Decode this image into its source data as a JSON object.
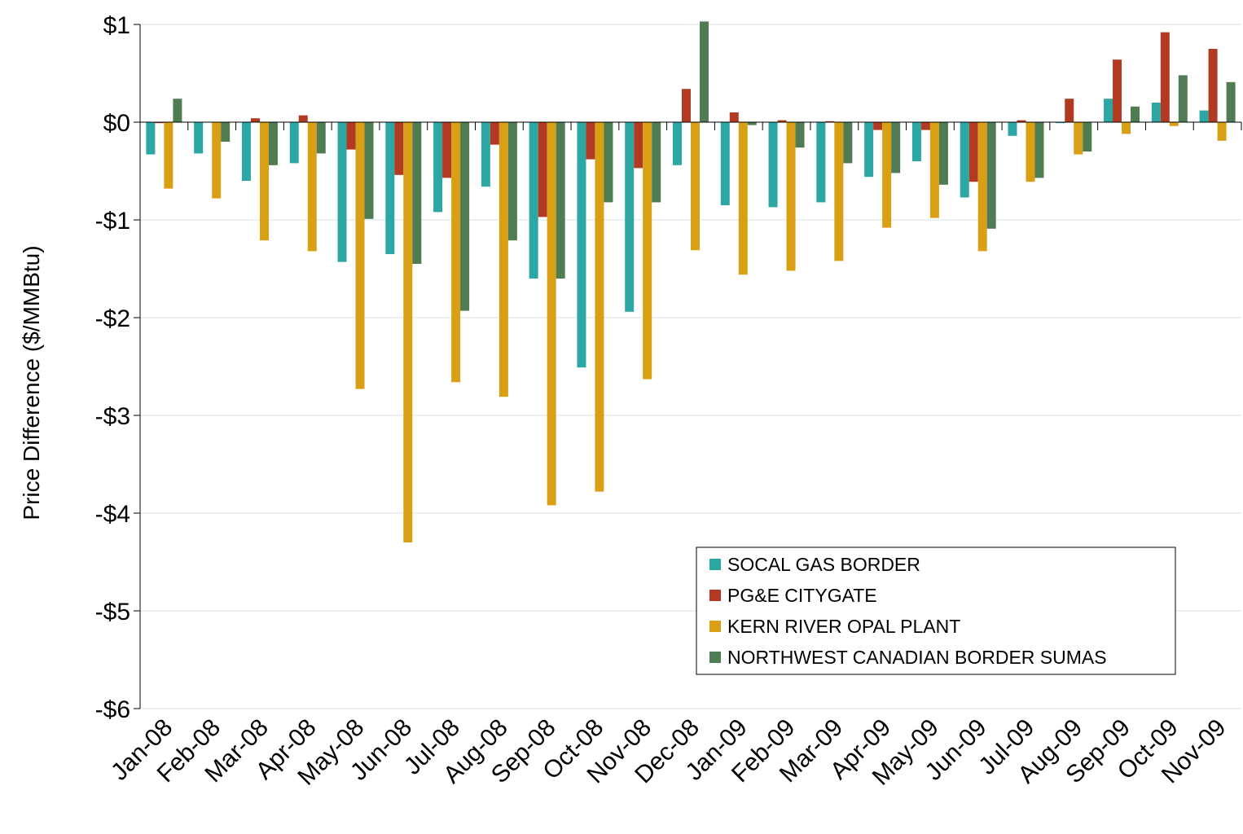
{
  "chart_data": {
    "type": "bar",
    "y_label": "Price Difference  ($/MMBtu)",
    "categories": [
      "Jan-08",
      "Feb-08",
      "Mar-08",
      "Apr-08",
      "May-08",
      "Jun-08",
      "Jul-08",
      "Aug-08",
      "Sep-08",
      "Oct-08",
      "Nov-08",
      "Dec-08",
      "Jan-09",
      "Feb-09",
      "Mar-09",
      "Apr-09",
      "May-09",
      "Jun-09",
      "Jul-09",
      "Aug-09",
      "Sep-09",
      "Oct-09",
      "Nov-09"
    ],
    "series": [
      {
        "name": "SOCAL GAS BORDER",
        "color": "#2ca7a4",
        "values": [
          -0.33,
          -0.32,
          -0.6,
          -0.42,
          -1.43,
          -1.35,
          -0.92,
          -0.66,
          -1.6,
          -2.51,
          -1.94,
          -0.44,
          -0.85,
          -0.87,
          -0.82,
          -0.56,
          -0.4,
          -0.77,
          -0.14,
          -0.01,
          0.24,
          0.2,
          0.12
        ]
      },
      {
        "name": "PG&E CITYGATE",
        "color": "#b33a22",
        "values": [
          -0.01,
          0,
          0.04,
          0.07,
          -0.28,
          -0.54,
          -0.57,
          -0.23,
          -0.97,
          -0.38,
          -0.47,
          0.34,
          0.1,
          0.02,
          0.01,
          -0.08,
          -0.08,
          -0.61,
          0.02,
          0.24,
          0.64,
          0.92,
          0.75
        ]
      },
      {
        "name": "KERN RIVER OPAL PLANT",
        "color": "#d9a015",
        "values": [
          -0.68,
          -0.78,
          -1.21,
          -1.32,
          -2.73,
          -4.3,
          -2.66,
          -2.81,
          -3.92,
          -3.78,
          -2.63,
          -1.31,
          -1.56,
          -1.52,
          -1.42,
          -1.08,
          -0.98,
          -1.32,
          -0.61,
          -0.33,
          -0.12,
          -0.04,
          -0.19
        ]
      },
      {
        "name": "NORTHWEST CANADIAN BORDER SUMAS",
        "color": "#4f7c53",
        "values": [
          0.24,
          -0.2,
          -0.44,
          -0.32,
          -0.99,
          -1.45,
          -1.93,
          -1.21,
          -1.6,
          -0.82,
          -0.82,
          1.03,
          -0.03,
          -0.26,
          -0.42,
          -0.52,
          -0.64,
          -1.09,
          -0.57,
          -0.3,
          0.16,
          0.48,
          0.41
        ]
      }
    ],
    "ylim": [
      -6,
      1
    ],
    "yticks": [
      {
        "value": -6,
        "label": "-$6"
      },
      {
        "value": -5,
        "label": "-$5"
      },
      {
        "value": -4,
        "label": "-$4"
      },
      {
        "value": -3,
        "label": "-$3"
      },
      {
        "value": -2,
        "label": "-$2"
      },
      {
        "value": -1,
        "label": "-$1"
      },
      {
        "value": 0,
        "label": "$0"
      },
      {
        "value": 1,
        "label": "$1"
      }
    ],
    "grid": true,
    "legend": "lower right"
  }
}
